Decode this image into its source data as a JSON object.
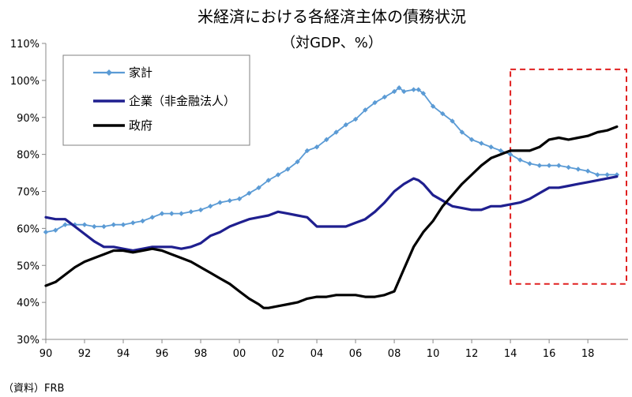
{
  "chart_data": {
    "type": "line",
    "title": "米経済における各経済主体の債務状況",
    "subtitle": "（対GDP、%）",
    "source": "（資料）FRB",
    "xlabel": "",
    "ylabel": "",
    "xlim": [
      1990,
      2019.75
    ],
    "ylim": [
      30,
      110
    ],
    "y_ticks": [
      30,
      40,
      50,
      60,
      70,
      80,
      90,
      100,
      110
    ],
    "y_tick_labels": [
      "30%",
      "40%",
      "50%",
      "60%",
      "70%",
      "80%",
      "90%",
      "100%",
      "110%"
    ],
    "x_ticks": [
      1990,
      1992,
      1994,
      1996,
      1998,
      2000,
      2002,
      2004,
      2006,
      2008,
      2010,
      2012,
      2014,
      2016,
      2018
    ],
    "x_tick_labels": [
      "90",
      "92",
      "94",
      "96",
      "98",
      "00",
      "02",
      "04",
      "06",
      "08",
      "10",
      "12",
      "14",
      "16",
      "18"
    ],
    "grid": false,
    "legend_position": "top-left",
    "highlight_region": {
      "x_start": 2014,
      "x_end": 2019.75,
      "y_min": 45,
      "y_max": 103,
      "style": "dashed-red"
    },
    "series": [
      {
        "name": "家計",
        "color": "#5b9bd5",
        "marker": "diamond",
        "points": [
          [
            1990,
            59
          ],
          [
            1990.5,
            59.5
          ],
          [
            1991,
            61
          ],
          [
            1991.5,
            61
          ],
          [
            1992,
            61
          ],
          [
            1992.5,
            60.5
          ],
          [
            1993,
            60.5
          ],
          [
            1993.5,
            61
          ],
          [
            1994,
            61
          ],
          [
            1994.5,
            61.5
          ],
          [
            1995,
            62
          ],
          [
            1995.5,
            63
          ],
          [
            1996,
            64
          ],
          [
            1996.5,
            64
          ],
          [
            1997,
            64
          ],
          [
            1997.5,
            64.5
          ],
          [
            1998,
            65
          ],
          [
            1998.5,
            66
          ],
          [
            1999,
            67
          ],
          [
            1999.5,
            67.5
          ],
          [
            2000,
            68
          ],
          [
            2000.5,
            69.5
          ],
          [
            2001,
            71
          ],
          [
            2001.5,
            73
          ],
          [
            2002,
            74.5
          ],
          [
            2002.5,
            76
          ],
          [
            2003,
            78
          ],
          [
            2003.5,
            81
          ],
          [
            2004,
            82
          ],
          [
            2004.5,
            84
          ],
          [
            2005,
            86
          ],
          [
            2005.5,
            88
          ],
          [
            2006,
            89.5
          ],
          [
            2006.5,
            92
          ],
          [
            2007,
            94
          ],
          [
            2007.5,
            95.5
          ],
          [
            2008,
            97
          ],
          [
            2008.25,
            98
          ],
          [
            2008.5,
            97
          ],
          [
            2009,
            97.5
          ],
          [
            2009.25,
            97.5
          ],
          [
            2009.5,
            96.5
          ],
          [
            2010,
            93
          ],
          [
            2010.5,
            91
          ],
          [
            2011,
            89
          ],
          [
            2011.5,
            86
          ],
          [
            2012,
            84
          ],
          [
            2012.5,
            83
          ],
          [
            2013,
            82
          ],
          [
            2013.5,
            81
          ],
          [
            2014,
            80
          ],
          [
            2014.5,
            78.5
          ],
          [
            2015,
            77.5
          ],
          [
            2015.5,
            77
          ],
          [
            2016,
            77
          ],
          [
            2016.5,
            77
          ],
          [
            2017,
            76.5
          ],
          [
            2017.5,
            76
          ],
          [
            2018,
            75.5
          ],
          [
            2018.5,
            74.5
          ],
          [
            2019,
            74.5
          ],
          [
            2019.5,
            74.5
          ]
        ]
      },
      {
        "name": "企業（非金融法人）",
        "color": "#1f1f8f",
        "marker": "none",
        "points": [
          [
            1990,
            63
          ],
          [
            1990.5,
            62.5
          ],
          [
            1991,
            62.5
          ],
          [
            1991.5,
            60.5
          ],
          [
            1992,
            58.5
          ],
          [
            1992.5,
            56.5
          ],
          [
            1993,
            55
          ],
          [
            1993.5,
            55
          ],
          [
            1994,
            54.5
          ],
          [
            1994.5,
            54
          ],
          [
            1995,
            54.5
          ],
          [
            1995.5,
            55
          ],
          [
            1996,
            55
          ],
          [
            1996.5,
            55
          ],
          [
            1997,
            54.5
          ],
          [
            1997.5,
            55
          ],
          [
            1998,
            56
          ],
          [
            1998.5,
            58
          ],
          [
            1999,
            59
          ],
          [
            1999.5,
            60.5
          ],
          [
            2000,
            61.5
          ],
          [
            2000.5,
            62.5
          ],
          [
            2001,
            63
          ],
          [
            2001.5,
            63.5
          ],
          [
            2002,
            64.5
          ],
          [
            2002.5,
            64
          ],
          [
            2003,
            63.5
          ],
          [
            2003.5,
            63
          ],
          [
            2004,
            60.5
          ],
          [
            2004.5,
            60.5
          ],
          [
            2005,
            60.5
          ],
          [
            2005.5,
            60.5
          ],
          [
            2006,
            61.5
          ],
          [
            2006.5,
            62.5
          ],
          [
            2007,
            64.5
          ],
          [
            2007.5,
            67
          ],
          [
            2008,
            70
          ],
          [
            2008.5,
            72
          ],
          [
            2009,
            73.5
          ],
          [
            2009.25,
            73
          ],
          [
            2009.5,
            72
          ],
          [
            2010,
            69
          ],
          [
            2010.5,
            67.5
          ],
          [
            2011,
            66
          ],
          [
            2011.5,
            65.5
          ],
          [
            2012,
            65
          ],
          [
            2012.5,
            65
          ],
          [
            2013,
            66
          ],
          [
            2013.5,
            66
          ],
          [
            2014,
            66.5
          ],
          [
            2014.5,
            67
          ],
          [
            2015,
            68
          ],
          [
            2015.5,
            69.5
          ],
          [
            2016,
            71
          ],
          [
            2016.5,
            71
          ],
          [
            2017,
            71.5
          ],
          [
            2017.5,
            72
          ],
          [
            2018,
            72.5
          ],
          [
            2018.5,
            73
          ],
          [
            2019,
            73.5
          ],
          [
            2019.5,
            74
          ]
        ]
      },
      {
        "name": "政府",
        "color": "#000000",
        "marker": "none",
        "points": [
          [
            1990,
            44.5
          ],
          [
            1990.5,
            45.5
          ],
          [
            1991,
            47.5
          ],
          [
            1991.5,
            49.5
          ],
          [
            1992,
            51
          ],
          [
            1992.5,
            52
          ],
          [
            1993,
            53
          ],
          [
            1993.5,
            54
          ],
          [
            1994,
            54
          ],
          [
            1994.5,
            53.5
          ],
          [
            1995,
            54
          ],
          [
            1995.5,
            54.5
          ],
          [
            1996,
            54
          ],
          [
            1996.5,
            53
          ],
          [
            1997,
            52
          ],
          [
            1997.5,
            51
          ],
          [
            1998,
            49.5
          ],
          [
            1998.5,
            48
          ],
          [
            1999,
            46.5
          ],
          [
            1999.5,
            45
          ],
          [
            2000,
            43
          ],
          [
            2000.5,
            41
          ],
          [
            2001,
            39.5
          ],
          [
            2001.25,
            38.5
          ],
          [
            2001.5,
            38.5
          ],
          [
            2002,
            39
          ],
          [
            2002.5,
            39.5
          ],
          [
            2003,
            40
          ],
          [
            2003.5,
            41
          ],
          [
            2004,
            41.5
          ],
          [
            2004.5,
            41.5
          ],
          [
            2005,
            42
          ],
          [
            2005.5,
            42
          ],
          [
            2006,
            42
          ],
          [
            2006.5,
            41.5
          ],
          [
            2007,
            41.5
          ],
          [
            2007.5,
            42
          ],
          [
            2008,
            43
          ],
          [
            2008.5,
            49
          ],
          [
            2009,
            55
          ],
          [
            2009.5,
            59
          ],
          [
            2010,
            62
          ],
          [
            2010.5,
            66
          ],
          [
            2011,
            69
          ],
          [
            2011.5,
            72
          ],
          [
            2012,
            74.5
          ],
          [
            2012.5,
            77
          ],
          [
            2013,
            79
          ],
          [
            2013.5,
            80
          ],
          [
            2014,
            81
          ],
          [
            2014.5,
            81
          ],
          [
            2015,
            81
          ],
          [
            2015.5,
            82
          ],
          [
            2016,
            84
          ],
          [
            2016.5,
            84.5
          ],
          [
            2017,
            84
          ],
          [
            2017.5,
            84.5
          ],
          [
            2018,
            85
          ],
          [
            2018.5,
            86
          ],
          [
            2019,
            86.5
          ],
          [
            2019.5,
            87.5
          ]
        ]
      }
    ]
  }
}
